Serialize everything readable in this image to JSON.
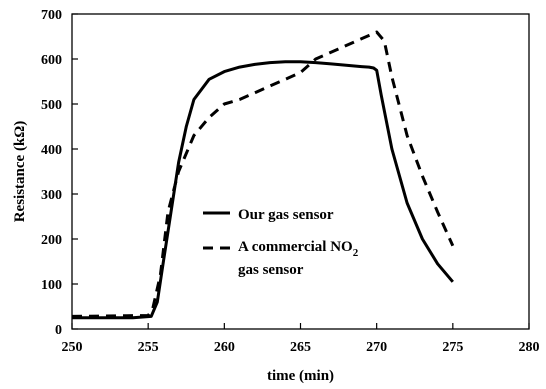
{
  "chart_data": {
    "type": "line",
    "title": "",
    "xlabel": "time (min)",
    "ylabel": "Resistance (kΩ)",
    "xlim": [
      250,
      280
    ],
    "ylim": [
      0,
      700
    ],
    "x_ticks": [
      250,
      255,
      260,
      265,
      270,
      275,
      280
    ],
    "y_ticks": [
      0,
      100,
      200,
      300,
      400,
      500,
      600,
      700
    ],
    "grid": false,
    "legend_position": "inside-lower-left",
    "series": [
      {
        "name": "Our gas sensor",
        "style": "solid",
        "color": "#000000",
        "points": [
          [
            250,
            25
          ],
          [
            254,
            25
          ],
          [
            255.2,
            28
          ],
          [
            255.6,
            60
          ],
          [
            256,
            150
          ],
          [
            256.5,
            260
          ],
          [
            257,
            370
          ],
          [
            257.5,
            450
          ],
          [
            258,
            510
          ],
          [
            259,
            555
          ],
          [
            260,
            572
          ],
          [
            261,
            582
          ],
          [
            262,
            588
          ],
          [
            263,
            592
          ],
          [
            264,
            594
          ],
          [
            265,
            594
          ],
          [
            266,
            592
          ],
          [
            267,
            589
          ],
          [
            268,
            586
          ],
          [
            269,
            583
          ],
          [
            269.5,
            582
          ],
          [
            269.8,
            580
          ],
          [
            270,
            575
          ],
          [
            270.3,
            520
          ],
          [
            271,
            400
          ],
          [
            272,
            280
          ],
          [
            273,
            200
          ],
          [
            274,
            145
          ],
          [
            275,
            105
          ]
        ]
      },
      {
        "name_parts": [
          "A commercial NO",
          "2",
          "gas sensor"
        ],
        "style": "dashed",
        "color": "#000000",
        "points": [
          [
            250,
            28
          ],
          [
            255,
            30
          ],
          [
            255.3,
            45
          ],
          [
            255.8,
            120
          ],
          [
            256.3,
            260
          ],
          [
            257,
            350
          ],
          [
            258,
            430
          ],
          [
            259,
            470
          ],
          [
            260,
            500
          ],
          [
            261,
            510
          ],
          [
            262,
            525
          ],
          [
            263,
            540
          ],
          [
            264,
            555
          ],
          [
            265,
            570
          ],
          [
            266,
            600
          ],
          [
            267,
            615
          ],
          [
            268,
            630
          ],
          [
            269,
            645
          ],
          [
            270,
            660
          ],
          [
            270.5,
            640
          ],
          [
            271,
            560
          ],
          [
            272,
            430
          ],
          [
            273,
            340
          ],
          [
            274,
            260
          ],
          [
            275,
            185
          ]
        ]
      }
    ]
  }
}
